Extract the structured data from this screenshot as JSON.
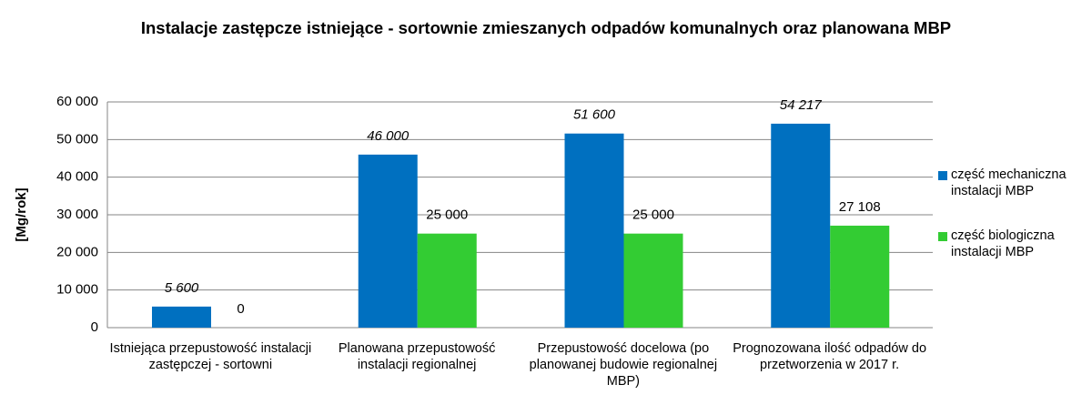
{
  "chart_data": {
    "type": "bar",
    "title": "Instalacje zastępcze istniejące - sortownie zmieszanych odpadów komunalnych oraz planowana MBP",
    "y_label": "[Mg/rok]",
    "categories": [
      "Istniejąca przepustowość instalacji zastępczej - sortowni",
      "Planowana przepustowość instalacji regionalnej",
      "Przepustowość docelowa (po planowanej budowie regionalnej MBP)",
      "Prognozowana ilość odpadów do przetworzenia w 2017 r."
    ],
    "series": [
      {
        "name": "część mechaniczna instalacji MBP",
        "color": "#0070c0",
        "values": [
          5600,
          46000,
          51600,
          54217
        ],
        "value_labels": [
          "5 600",
          "46 000",
          "51 600",
          "54 217"
        ]
      },
      {
        "name": "część biologiczna instalacji MBP",
        "color": "#33cc33",
        "values": [
          0,
          25000,
          25000,
          27108
        ],
        "value_labels": [
          "0",
          "25 000",
          "25 000",
          "27 108"
        ]
      }
    ],
    "ylim": [
      0,
      60000
    ],
    "yticks": [
      0,
      {
        "value": 10000,
        "label": "10 000"
      },
      {
        "value": 20000,
        "label": "20 000"
      },
      {
        "value": 30000,
        "label": "30 000"
      },
      {
        "value": 40000,
        "label": "40 000"
      },
      {
        "value": 50000,
        "label": "50 000"
      },
      {
        "value": 60000,
        "label": "60 000"
      }
    ],
    "grid": true,
    "legend": "right"
  }
}
